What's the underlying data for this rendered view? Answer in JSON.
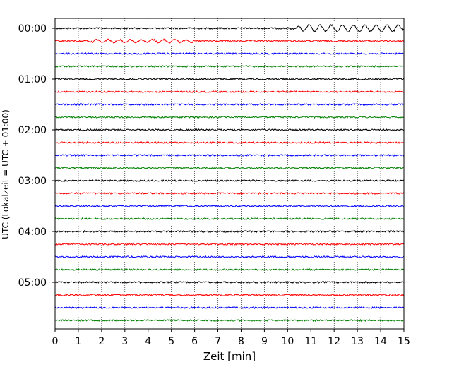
{
  "chart_data": {
    "type": "line",
    "subtype": "seismogram-helicorder",
    "xlabel": "Zeit  [min]",
    "ylabel": "UTC (Lokalzeit = UTC + 01:00)",
    "xlim": [
      0,
      15
    ],
    "xticks": [
      "0",
      "1",
      "2",
      "3",
      "4",
      "5",
      "6",
      "7",
      "8",
      "9",
      "10",
      "11",
      "12",
      "13",
      "14",
      "15"
    ],
    "yticks": [
      "00:00",
      "01:00",
      "02:00",
      "03:00",
      "04:00",
      "05:00"
    ],
    "trace_interval_min": 15,
    "trace_count": 24,
    "trace_colors": [
      "#000000",
      "#ff0000",
      "#0000ff",
      "#008000"
    ],
    "grid": "vertical dotted lines at each minute",
    "events": [
      {
        "trace": 0,
        "x_start": 10.0,
        "x_end": 15.0,
        "description": "larger oscillation, period ~0.5 min"
      },
      {
        "trace": 1,
        "x_start": 1.0,
        "x_end": 6.0,
        "description": "moderate oscillation"
      }
    ]
  }
}
